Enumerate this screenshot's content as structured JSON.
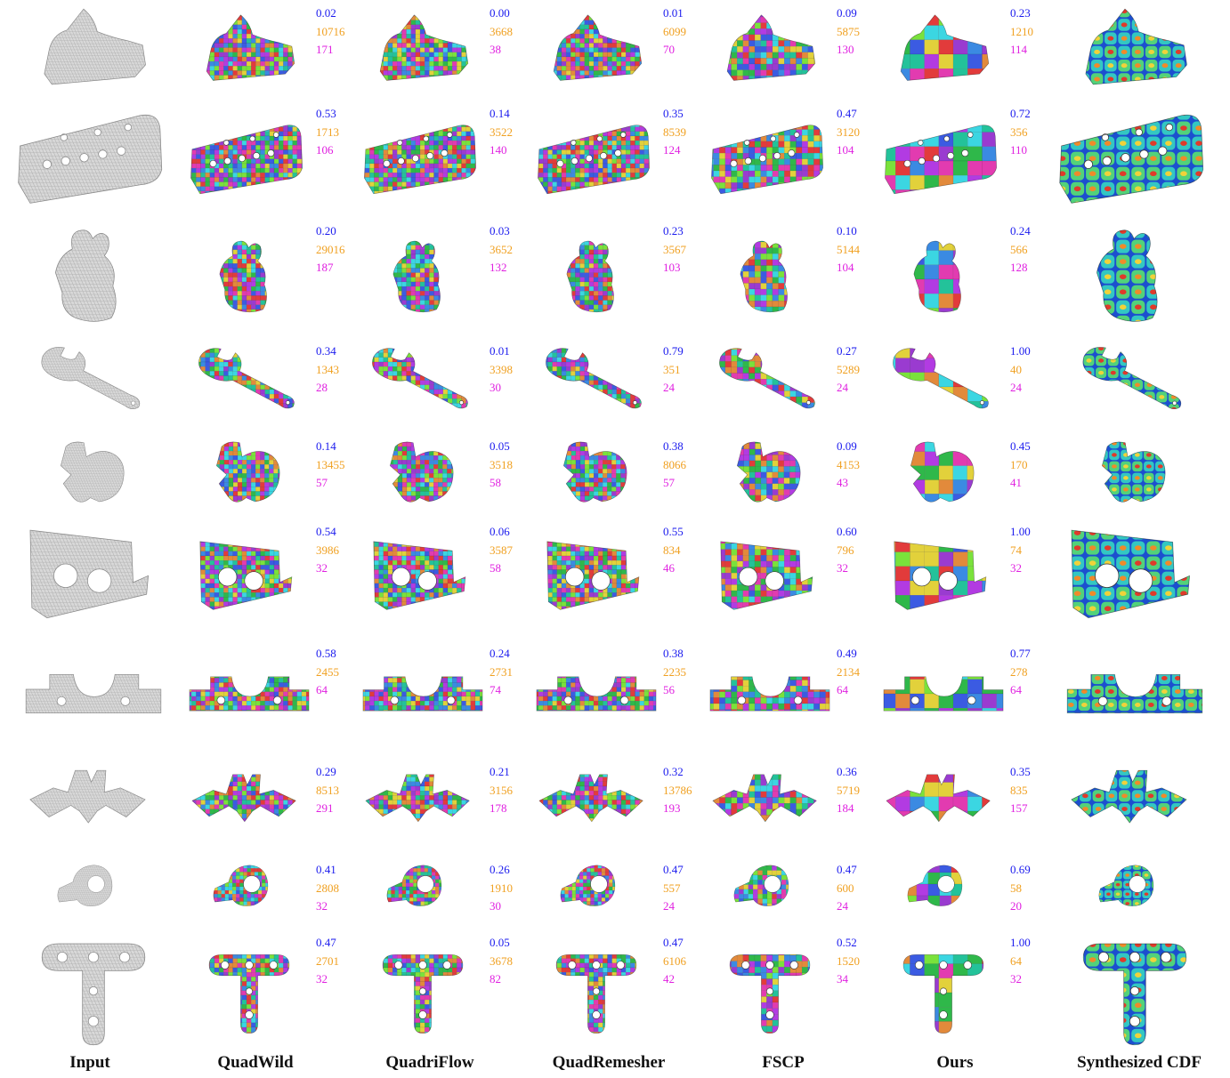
{
  "columns": [
    "Input",
    "QuadWild",
    "QuadriFlow",
    "QuadRemesher",
    "FSCP",
    "Ours",
    "Synthesized CDF"
  ],
  "colors": {
    "metric_1": "#1a1aee",
    "metric_2": "#f0a020",
    "metric_3": "#e020e0"
  },
  "rows": [
    {
      "shape": "sphinx",
      "stats": [
        [
          "0.02",
          "10716",
          "171"
        ],
        [
          "0.00",
          "3668",
          "38"
        ],
        [
          "0.01",
          "6099",
          "70"
        ],
        [
          "0.09",
          "5875",
          "130"
        ],
        [
          "0.23",
          "1210",
          "114"
        ]
      ]
    },
    {
      "shape": "bracket-holes",
      "stats": [
        [
          "0.53",
          "1713",
          "106"
        ],
        [
          "0.14",
          "3522",
          "140"
        ],
        [
          "0.35",
          "8539",
          "124"
        ],
        [
          "0.47",
          "3120",
          "104"
        ],
        [
          "0.72",
          "356",
          "110"
        ]
      ]
    },
    {
      "shape": "fertility",
      "stats": [
        [
          "0.20",
          "29016",
          "187"
        ],
        [
          "0.03",
          "3652",
          "132"
        ],
        [
          "0.23",
          "3567",
          "103"
        ],
        [
          "0.10",
          "5144",
          "104"
        ],
        [
          "0.24",
          "566",
          "128"
        ]
      ]
    },
    {
      "shape": "wrench",
      "stats": [
        [
          "0.34",
          "1343",
          "28"
        ],
        [
          "0.01",
          "3398",
          "30"
        ],
        [
          "0.79",
          "351",
          "24"
        ],
        [
          "0.27",
          "5289",
          "24"
        ],
        [
          "1.00",
          "40",
          "24"
        ]
      ]
    },
    {
      "shape": "cam-part",
      "stats": [
        [
          "0.14",
          "13455",
          "57"
        ],
        [
          "0.05",
          "3518",
          "58"
        ],
        [
          "0.38",
          "8066",
          "57"
        ],
        [
          "0.09",
          "4153",
          "43"
        ],
        [
          "0.45",
          "170",
          "41"
        ]
      ]
    },
    {
      "shape": "half-pipe",
      "stats": [
        [
          "0.54",
          "3986",
          "32"
        ],
        [
          "0.06",
          "3587",
          "58"
        ],
        [
          "0.55",
          "834",
          "46"
        ],
        [
          "0.60",
          "796",
          "32"
        ],
        [
          "1.00",
          "74",
          "32"
        ]
      ]
    },
    {
      "shape": "block",
      "stats": [
        [
          "0.58",
          "2455",
          "64"
        ],
        [
          "0.24",
          "2731",
          "74"
        ],
        [
          "0.38",
          "2235",
          "56"
        ],
        [
          "0.49",
          "2134",
          "64"
        ],
        [
          "0.77",
          "278",
          "64"
        ]
      ]
    },
    {
      "shape": "corner-bracket",
      "stats": [
        [
          "0.29",
          "8513",
          "291"
        ],
        [
          "0.21",
          "3156",
          "178"
        ],
        [
          "0.32",
          "13786",
          "193"
        ],
        [
          "0.36",
          "5719",
          "184"
        ],
        [
          "0.35",
          "835",
          "157"
        ]
      ]
    },
    {
      "shape": "bolt",
      "stats": [
        [
          "0.41",
          "2808",
          "32"
        ],
        [
          "0.26",
          "1910",
          "30"
        ],
        [
          "0.47",
          "557",
          "24"
        ],
        [
          "0.47",
          "600",
          "24"
        ],
        [
          "0.69",
          "58",
          "20"
        ]
      ]
    },
    {
      "shape": "t-plate",
      "stats": [
        [
          "0.47",
          "2701",
          "32"
        ],
        [
          "0.05",
          "3678",
          "82"
        ],
        [
          "0.47",
          "6106",
          "42"
        ],
        [
          "0.52",
          "1520",
          "34"
        ],
        [
          "1.00",
          "64",
          "32"
        ]
      ]
    }
  ]
}
